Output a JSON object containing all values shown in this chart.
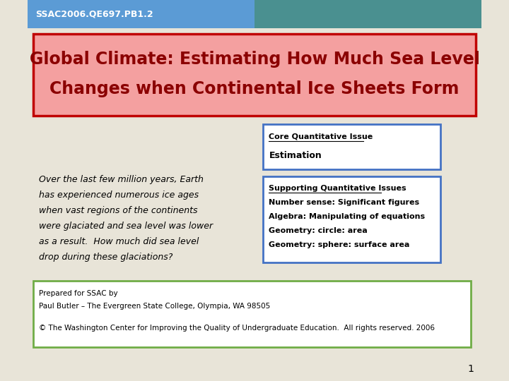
{
  "header_text": "SSAC2006.QE697.PB1.2",
  "header_bg_left": "#5b9bd5",
  "header_bg_right": "#4a9090",
  "header_text_color": "#ffffff",
  "slide_bg": "#e8e4d8",
  "title_text_line1": "Global Climate: Estimating How Much Sea Level",
  "title_text_line2": "Changes when Continental Ice Sheets Form",
  "title_box_bg": "#f4a0a0",
  "title_box_border": "#c00000",
  "title_text_color": "#8b0000",
  "body_text_lines": [
    "Over the last few million years, Earth",
    "has experienced numerous ice ages",
    "when vast regions of the continents",
    "were glaciated and sea level was lower",
    "as a result.  How much did sea level",
    "drop during these glaciations?"
  ],
  "body_text_color": "#000000",
  "core_box_title": "Core Quantitative Issue",
  "core_box_body": "Estimation",
  "core_box_border": "#4472c4",
  "core_box_bg": "#ffffff",
  "supporting_box_title": "Supporting Quantitative Issues",
  "supporting_box_lines": [
    "Number sense: Significant figures",
    "Algebra: Manipulating of equations",
    "Geometry: circle: area",
    "Geometry: sphere: surface area"
  ],
  "supporting_box_border": "#4472c4",
  "supporting_box_bg": "#ffffff",
  "footer_box_bg": "#ffffff",
  "footer_box_border": "#70ad47",
  "footer_line1": "Prepared for SSAC by",
  "footer_line2": "Paul Butler – The Evergreen State College, Olympia, WA 98505",
  "footer_line3": "© The Washington Center for Improving the Quality of Undergraduate Education.  All rights reserved. 2006",
  "page_number": "1"
}
